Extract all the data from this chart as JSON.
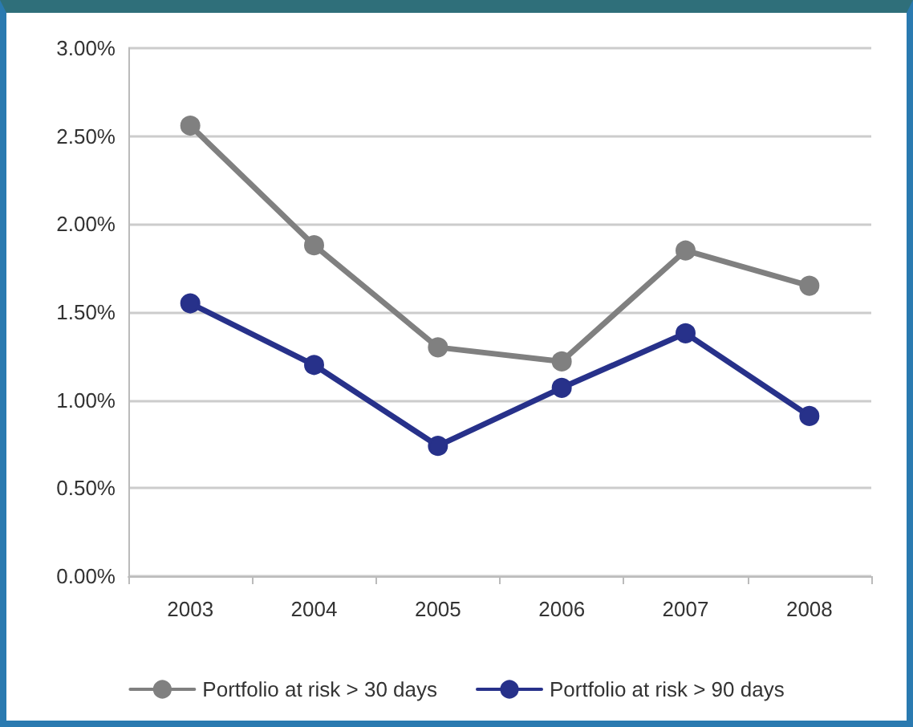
{
  "chart_data": {
    "type": "line",
    "categories": [
      "2003",
      "2004",
      "2005",
      "2006",
      "2007",
      "2008"
    ],
    "series": [
      {
        "name": "Portfolio at risk > 30 days",
        "color": "#808080",
        "values": [
          2.56,
          1.88,
          1.3,
          1.22,
          1.85,
          1.65
        ]
      },
      {
        "name": "Portfolio at risk > 90 days",
        "color": "#27318a",
        "values": [
          1.55,
          1.2,
          0.74,
          1.07,
          1.38,
          0.91
        ]
      }
    ],
    "ylim": [
      0,
      3
    ],
    "yticks": [
      {
        "value": 0,
        "label": "0.00%"
      },
      {
        "value": 0.5,
        "label": "0.50%"
      },
      {
        "value": 1,
        "label": "1.00%"
      },
      {
        "value": 1.5,
        "label": "1.50%"
      },
      {
        "value": 2,
        "label": "2.00%"
      },
      {
        "value": 2.5,
        "label": "2.50%"
      },
      {
        "value": 3,
        "label": "3.00%"
      }
    ],
    "grid": "y",
    "legend": "bottom",
    "marker": "circle",
    "line_style": "solid"
  }
}
